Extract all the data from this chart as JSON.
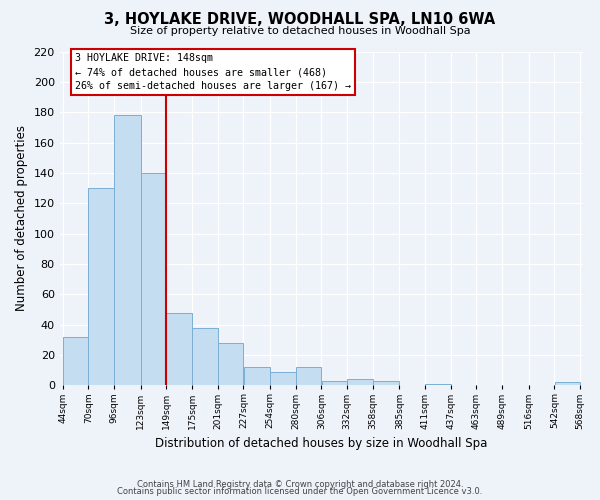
{
  "title": "3, HOYLAKE DRIVE, WOODHALL SPA, LN10 6WA",
  "subtitle": "Size of property relative to detached houses in Woodhall Spa",
  "xlabel": "Distribution of detached houses by size in Woodhall Spa",
  "ylabel": "Number of detached properties",
  "bar_color": "#c5ddf0",
  "bar_edge_color": "#7bafd4",
  "reference_line_x": 149,
  "reference_line_color": "#cc0000",
  "annotation_title": "3 HOYLAKE DRIVE: 148sqm",
  "annotation_line1": "← 74% of detached houses are smaller (468)",
  "annotation_line2": "26% of semi-detached houses are larger (167) →",
  "annotation_box_color": "#ffffff",
  "annotation_box_edge_color": "#cc0000",
  "bins": [
    44,
    70,
    96,
    123,
    149,
    175,
    201,
    227,
    254,
    280,
    306,
    332,
    358,
    385,
    411,
    437,
    463,
    489,
    516,
    542,
    568
  ],
  "bar_heights": [
    32,
    130,
    178,
    140,
    48,
    38,
    28,
    12,
    9,
    12,
    3,
    4,
    3,
    0,
    1,
    0,
    0,
    0,
    0,
    2
  ],
  "ylim": [
    0,
    220
  ],
  "yticks": [
    0,
    20,
    40,
    60,
    80,
    100,
    120,
    140,
    160,
    180,
    200,
    220
  ],
  "background_color": "#eef2f9",
  "footer_line1": "Contains HM Land Registry data © Crown copyright and database right 2024.",
  "footer_line2": "Contains public sector information licensed under the Open Government Licence v3.0."
}
